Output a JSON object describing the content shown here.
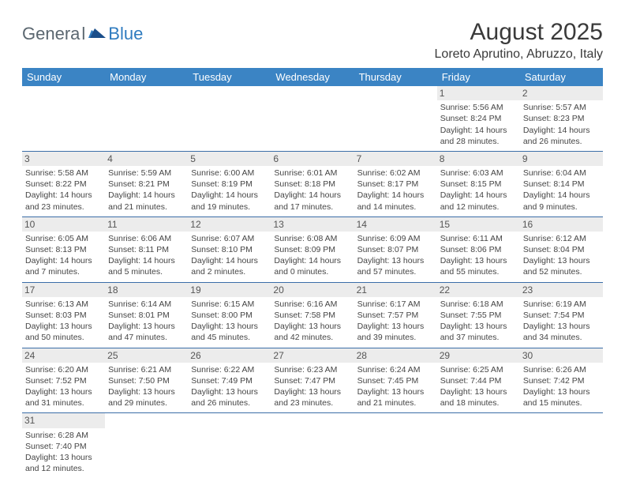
{
  "logo": {
    "text1": "Genera",
    "text2": "l",
    "text3": "Blue"
  },
  "title": "August 2025",
  "location": "Loreto Aprutino, Abruzzo, Italy",
  "colors": {
    "header_bg": "#3b84c4",
    "header_text": "#ffffff",
    "cell_border": "#3b6ea8",
    "daynum_bg": "#ececec",
    "text": "#454545",
    "logo_gray": "#5b6770",
    "logo_blue": "#2f7bbf"
  },
  "weekdays": [
    "Sunday",
    "Monday",
    "Tuesday",
    "Wednesday",
    "Thursday",
    "Friday",
    "Saturday"
  ],
  "weeks": [
    [
      null,
      null,
      null,
      null,
      null,
      {
        "n": "1",
        "sr": "5:56 AM",
        "ss": "8:24 PM",
        "dl": "14 hours and 28 minutes."
      },
      {
        "n": "2",
        "sr": "5:57 AM",
        "ss": "8:23 PM",
        "dl": "14 hours and 26 minutes."
      }
    ],
    [
      {
        "n": "3",
        "sr": "5:58 AM",
        "ss": "8:22 PM",
        "dl": "14 hours and 23 minutes."
      },
      {
        "n": "4",
        "sr": "5:59 AM",
        "ss": "8:21 PM",
        "dl": "14 hours and 21 minutes."
      },
      {
        "n": "5",
        "sr": "6:00 AM",
        "ss": "8:19 PM",
        "dl": "14 hours and 19 minutes."
      },
      {
        "n": "6",
        "sr": "6:01 AM",
        "ss": "8:18 PM",
        "dl": "14 hours and 17 minutes."
      },
      {
        "n": "7",
        "sr": "6:02 AM",
        "ss": "8:17 PM",
        "dl": "14 hours and 14 minutes."
      },
      {
        "n": "8",
        "sr": "6:03 AM",
        "ss": "8:15 PM",
        "dl": "14 hours and 12 minutes."
      },
      {
        "n": "9",
        "sr": "6:04 AM",
        "ss": "8:14 PM",
        "dl": "14 hours and 9 minutes."
      }
    ],
    [
      {
        "n": "10",
        "sr": "6:05 AM",
        "ss": "8:13 PM",
        "dl": "14 hours and 7 minutes."
      },
      {
        "n": "11",
        "sr": "6:06 AM",
        "ss": "8:11 PM",
        "dl": "14 hours and 5 minutes."
      },
      {
        "n": "12",
        "sr": "6:07 AM",
        "ss": "8:10 PM",
        "dl": "14 hours and 2 minutes."
      },
      {
        "n": "13",
        "sr": "6:08 AM",
        "ss": "8:09 PM",
        "dl": "14 hours and 0 minutes."
      },
      {
        "n": "14",
        "sr": "6:09 AM",
        "ss": "8:07 PM",
        "dl": "13 hours and 57 minutes."
      },
      {
        "n": "15",
        "sr": "6:11 AM",
        "ss": "8:06 PM",
        "dl": "13 hours and 55 minutes."
      },
      {
        "n": "16",
        "sr": "6:12 AM",
        "ss": "8:04 PM",
        "dl": "13 hours and 52 minutes."
      }
    ],
    [
      {
        "n": "17",
        "sr": "6:13 AM",
        "ss": "8:03 PM",
        "dl": "13 hours and 50 minutes."
      },
      {
        "n": "18",
        "sr": "6:14 AM",
        "ss": "8:01 PM",
        "dl": "13 hours and 47 minutes."
      },
      {
        "n": "19",
        "sr": "6:15 AM",
        "ss": "8:00 PM",
        "dl": "13 hours and 45 minutes."
      },
      {
        "n": "20",
        "sr": "6:16 AM",
        "ss": "7:58 PM",
        "dl": "13 hours and 42 minutes."
      },
      {
        "n": "21",
        "sr": "6:17 AM",
        "ss": "7:57 PM",
        "dl": "13 hours and 39 minutes."
      },
      {
        "n": "22",
        "sr": "6:18 AM",
        "ss": "7:55 PM",
        "dl": "13 hours and 37 minutes."
      },
      {
        "n": "23",
        "sr": "6:19 AM",
        "ss": "7:54 PM",
        "dl": "13 hours and 34 minutes."
      }
    ],
    [
      {
        "n": "24",
        "sr": "6:20 AM",
        "ss": "7:52 PM",
        "dl": "13 hours and 31 minutes."
      },
      {
        "n": "25",
        "sr": "6:21 AM",
        "ss": "7:50 PM",
        "dl": "13 hours and 29 minutes."
      },
      {
        "n": "26",
        "sr": "6:22 AM",
        "ss": "7:49 PM",
        "dl": "13 hours and 26 minutes."
      },
      {
        "n": "27",
        "sr": "6:23 AM",
        "ss": "7:47 PM",
        "dl": "13 hours and 23 minutes."
      },
      {
        "n": "28",
        "sr": "6:24 AM",
        "ss": "7:45 PM",
        "dl": "13 hours and 21 minutes."
      },
      {
        "n": "29",
        "sr": "6:25 AM",
        "ss": "7:44 PM",
        "dl": "13 hours and 18 minutes."
      },
      {
        "n": "30",
        "sr": "6:26 AM",
        "ss": "7:42 PM",
        "dl": "13 hours and 15 minutes."
      }
    ],
    [
      {
        "n": "31",
        "sr": "6:28 AM",
        "ss": "7:40 PM",
        "dl": "13 hours and 12 minutes."
      },
      null,
      null,
      null,
      null,
      null,
      null
    ]
  ],
  "labels": {
    "sunrise": "Sunrise:",
    "sunset": "Sunset:",
    "daylight": "Daylight:"
  }
}
